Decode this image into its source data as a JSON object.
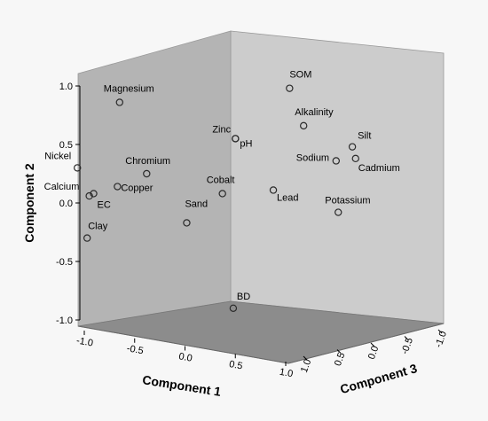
{
  "chart_data": {
    "type": "scatter",
    "projection": "3d",
    "title": "",
    "axes": {
      "x": {
        "label": "Component 1",
        "range": [
          -1.0,
          1.0
        ],
        "ticks": [
          "-1.0",
          "-0.5",
          "0.0",
          "0.5",
          "1.0"
        ]
      },
      "y": {
        "label": "Component 2",
        "range": [
          -1.0,
          1.0
        ],
        "ticks": [
          "1.0",
          "0.5",
          "0.0",
          "-0.5",
          "-1.0"
        ]
      },
      "z": {
        "label": "Component 3",
        "range": [
          -1.0,
          1.0
        ],
        "ticks": [
          "1.0",
          "0.5",
          "0.0",
          "-0.5",
          "-1.0"
        ]
      }
    },
    "points": [
      {
        "label": "SOM",
        "screen_value": [
          0.97,
          0.98
        ]
      },
      {
        "label": "Magnesium",
        "screen_value": [
          -0.6,
          0.86
        ]
      },
      {
        "label": "Alkalinity",
        "screen_value": [
          1.1,
          0.66
        ]
      },
      {
        "label": "Zinc",
        "screen_value": [
          0.47,
          0.55
        ]
      },
      {
        "label": "pH",
        "screen_value": [
          0.47,
          0.55
        ]
      },
      {
        "label": "Silt",
        "screen_value": [
          1.55,
          0.48
        ]
      },
      {
        "label": "Sodium",
        "screen_value": [
          1.4,
          0.36
        ]
      },
      {
        "label": "Cadmium",
        "screen_value": [
          1.58,
          0.38
        ]
      },
      {
        "label": "Nickel",
        "screen_value": [
          -0.99,
          0.3
        ]
      },
      {
        "label": "Chromium",
        "screen_value": [
          -0.35,
          0.25
        ]
      },
      {
        "label": "Cobalt",
        "screen_value": [
          0.35,
          0.08
        ]
      },
      {
        "label": "Calcium",
        "screen_value": [
          -0.88,
          0.06
        ]
      },
      {
        "label": "Copper",
        "screen_value": [
          -0.62,
          0.14
        ]
      },
      {
        "label": "EC",
        "screen_value": [
          -0.84,
          0.08
        ]
      },
      {
        "label": "Lead",
        "screen_value": [
          0.82,
          0.11
        ]
      },
      {
        "label": "Potassium",
        "screen_value": [
          1.42,
          -0.08
        ]
      },
      {
        "label": "Sand",
        "screen_value": [
          0.02,
          -0.17
        ]
      },
      {
        "label": "Clay",
        "screen_value": [
          -0.9,
          -0.3
        ]
      },
      {
        "label": "BD",
        "screen_value": [
          0.45,
          -0.9
        ]
      }
    ],
    "colors": {
      "background": "#f5f5f5",
      "back_wall": "#cccccc",
      "left_wall": "#b4b4b4",
      "floor": "#8c8c8c",
      "marker_stroke": "#2b2b2b"
    }
  }
}
